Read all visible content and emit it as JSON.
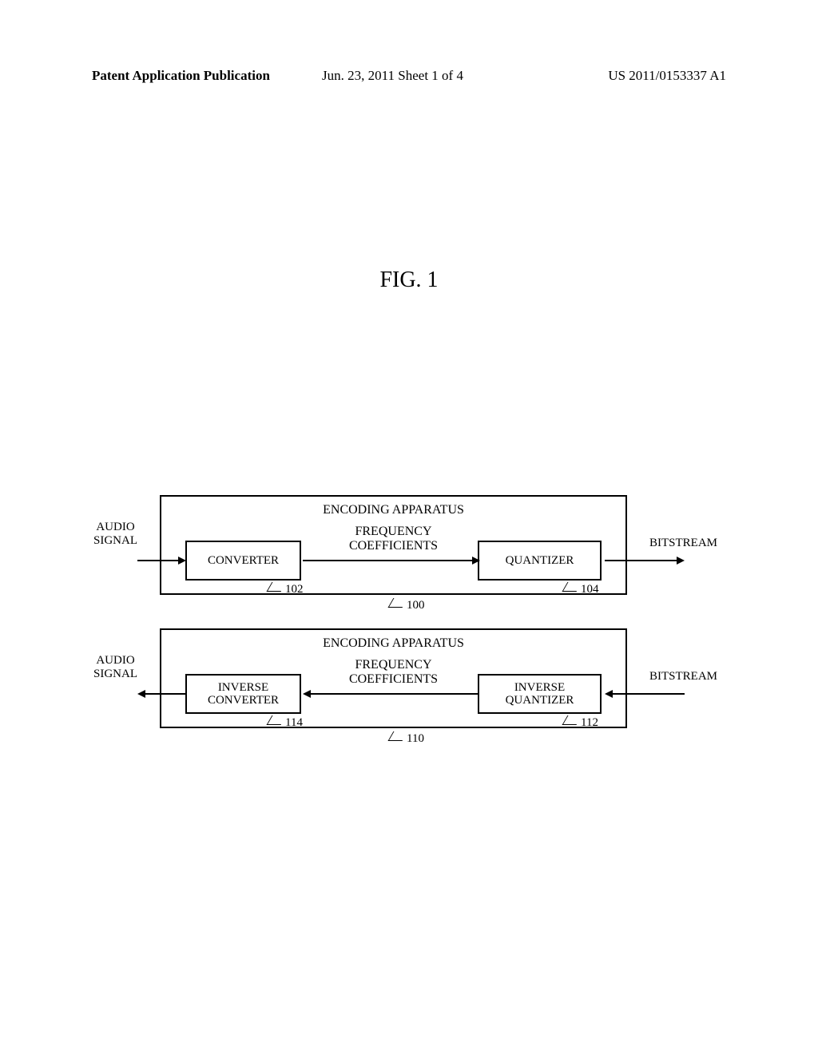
{
  "header": {
    "left": "Patent Application Publication",
    "center": "Jun. 23, 2011  Sheet 1 of 4",
    "right": "US 2011/0153337 A1"
  },
  "figure": {
    "title": "FIG. 1"
  },
  "encoder": {
    "title": "ENCODING APPARATUS",
    "input_label": "AUDIO\nSIGNAL",
    "block1": "CONVERTER",
    "block2": "QUANTIZER",
    "middle_label": "FREQUENCY\nCOEFFICIENTS",
    "output_label": "BITSTREAM",
    "ref_block1": "102",
    "ref_block2": "104",
    "ref_box": "100"
  },
  "decoder": {
    "title": "ENCODING APPARATUS",
    "output_label": "AUDIO\nSIGNAL",
    "block1": "INVERSE\nCONVERTER",
    "block2": "INVERSE\nQUANTIZER",
    "middle_label": "FREQUENCY\nCOEFFICIENTS",
    "input_label": "BITSTREAM",
    "ref_block1": "114",
    "ref_block2": "112",
    "ref_box": "110"
  },
  "style": {
    "background": "#ffffff",
    "line_color": "#000000",
    "font_family": "Times New Roman",
    "title_fontsize": 28,
    "label_fontsize": 15,
    "header_fontsize": 17
  }
}
